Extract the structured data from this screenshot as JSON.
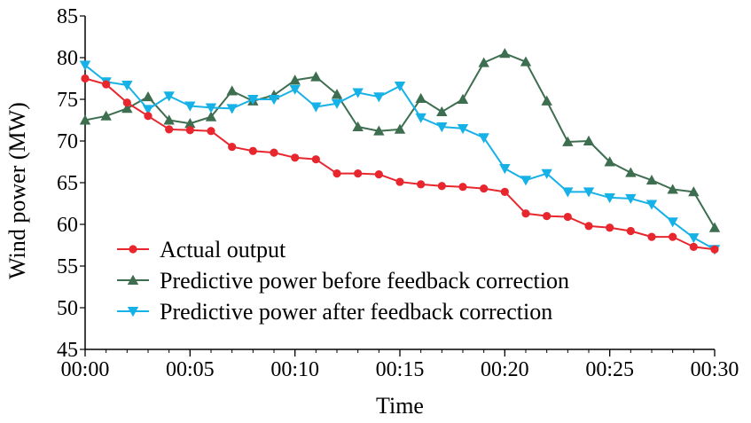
{
  "chart_data": {
    "type": "line",
    "title": "",
    "xlabel": "Time",
    "ylabel": "Wind power (MW)",
    "ylim": [
      45,
      85
    ],
    "yticks": [
      "45",
      "50",
      "55",
      "60",
      "65",
      "70",
      "75",
      "80",
      "85"
    ],
    "xlim": [
      0,
      30
    ],
    "xticks": [
      {
        "value": 0,
        "label": "00:00"
      },
      {
        "value": 5,
        "label": "00:05"
      },
      {
        "value": 10,
        "label": "00:10"
      },
      {
        "value": 15,
        "label": "00:15"
      },
      {
        "value": 20,
        "label": "00:20"
      },
      {
        "value": 25,
        "label": "00:25"
      },
      {
        "value": 30,
        "label": "00:30"
      }
    ],
    "x_unit": "minutes",
    "x": [
      0,
      1,
      2,
      3,
      4,
      5,
      6,
      7,
      8,
      9,
      10,
      11,
      12,
      13,
      14,
      15,
      16,
      17,
      18,
      19,
      20,
      21,
      22,
      23,
      24,
      25,
      26,
      27,
      28,
      29,
      30
    ],
    "grid": false,
    "legend_position": "bottom-left",
    "series": [
      {
        "name": "Actual output",
        "color": "#e8262e",
        "marker": "circle",
        "values": [
          77.5,
          76.8,
          74.6,
          73.0,
          71.4,
          71.3,
          71.2,
          69.3,
          68.8,
          68.6,
          68.0,
          67.8,
          66.1,
          66.1,
          66.0,
          65.1,
          64.8,
          64.6,
          64.5,
          64.3,
          63.9,
          61.3,
          61.0,
          60.9,
          59.8,
          59.6,
          59.2,
          58.5,
          58.5,
          57.3,
          57.0
        ]
      },
      {
        "name": "Predictive power before feedback correction",
        "color": "#3e6e50",
        "marker": "triangle-up",
        "values": [
          72.5,
          73.0,
          73.9,
          75.3,
          72.5,
          72.1,
          72.9,
          76.0,
          74.8,
          75.5,
          77.3,
          77.7,
          75.6,
          71.7,
          71.2,
          71.4,
          75.1,
          73.5,
          75.0,
          79.4,
          80.5,
          79.5,
          74.8,
          69.9,
          70.0,
          67.5,
          66.2,
          65.3,
          64.2,
          63.9,
          59.6
        ]
      },
      {
        "name": "Predictive power after feedback correction",
        "color": "#16b1e6",
        "marker": "triangle-down",
        "values": [
          79.1,
          77.1,
          76.7,
          73.8,
          75.4,
          74.2,
          74.0,
          73.9,
          75.0,
          75.0,
          76.2,
          74.1,
          74.5,
          75.8,
          75.3,
          76.6,
          72.8,
          71.7,
          71.5,
          70.4,
          66.7,
          65.3,
          66.1,
          63.9,
          63.9,
          63.2,
          63.1,
          62.4,
          60.3,
          58.4,
          57.0
        ]
      }
    ]
  }
}
